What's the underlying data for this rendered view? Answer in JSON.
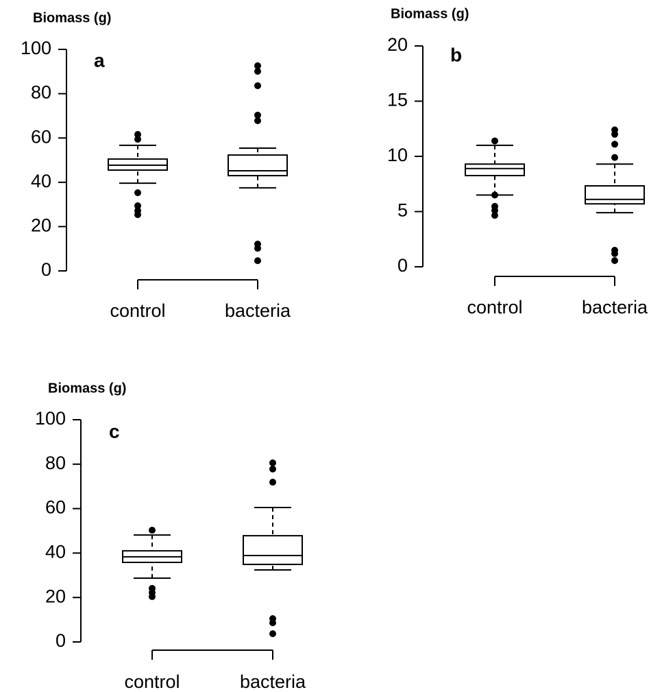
{
  "chart_data": [
    {
      "type": "box",
      "y_label": "Biomass (g)",
      "panel_label": "a",
      "categories": [
        "control",
        "bacteria"
      ],
      "ylim": [
        0,
        100
      ],
      "yticks": [
        0,
        20,
        40,
        60,
        80,
        100
      ],
      "boxes": [
        {
          "whisker_low": 39.6,
          "q1": 45.5,
          "median": 47.7,
          "q3": 50.5,
          "whisker_high": 56.7,
          "outliers": [
            61.6,
            59.4,
            35.3,
            29.4,
            27.2,
            25.4
          ]
        },
        {
          "whisker_low": 37.5,
          "q1": 43,
          "median": 45.2,
          "q3": 52.3,
          "whisker_high": 55.4,
          "outliers": [
            92.6,
            90.1,
            83.6,
            70.3,
            67.8,
            12.1,
            10.2,
            4.6
          ]
        }
      ]
    },
    {
      "type": "box",
      "y_label": "Biomass (g)",
      "panel_label": "b",
      "categories": [
        "control",
        "bacteria"
      ],
      "ylim": [
        0,
        20
      ],
      "yticks": [
        0,
        5,
        10,
        15,
        20
      ],
      "boxes": [
        {
          "whisker_low": 6.5,
          "q1": 8.26,
          "median": 8.9,
          "q3": 9.3,
          "whisker_high": 11.0,
          "outliers": [
            11.4,
            6.5,
            5.47,
            5.1,
            4.66
          ]
        },
        {
          "whisker_low": 4.9,
          "q1": 5.7,
          "median": 6.1,
          "q3": 7.33,
          "whisker_high": 9.3,
          "outliers": [
            12.4,
            12.0,
            11.1,
            9.9,
            1.5,
            1.2,
            0.56
          ]
        }
      ]
    },
    {
      "type": "box",
      "y_label": "Biomass (g)",
      "panel_label": "c",
      "categories": [
        "control",
        "bacteria"
      ],
      "ylim": [
        0,
        100
      ],
      "yticks": [
        0,
        20,
        40,
        60,
        80,
        100
      ],
      "boxes": [
        {
          "whisker_low": 28.7,
          "q1": 35.8,
          "median": 38.3,
          "q3": 41,
          "whisker_high": 48.1,
          "outliers": [
            50.3,
            24.1,
            22.2,
            20.4
          ]
        },
        {
          "whisker_low": 32.4,
          "q1": 34.9,
          "median": 38.9,
          "q3": 47.8,
          "whisker_high": 60.5,
          "outliers": [
            80.6,
            77.8,
            71.9,
            10.5,
            8.6,
            3.7
          ]
        }
      ]
    }
  ]
}
